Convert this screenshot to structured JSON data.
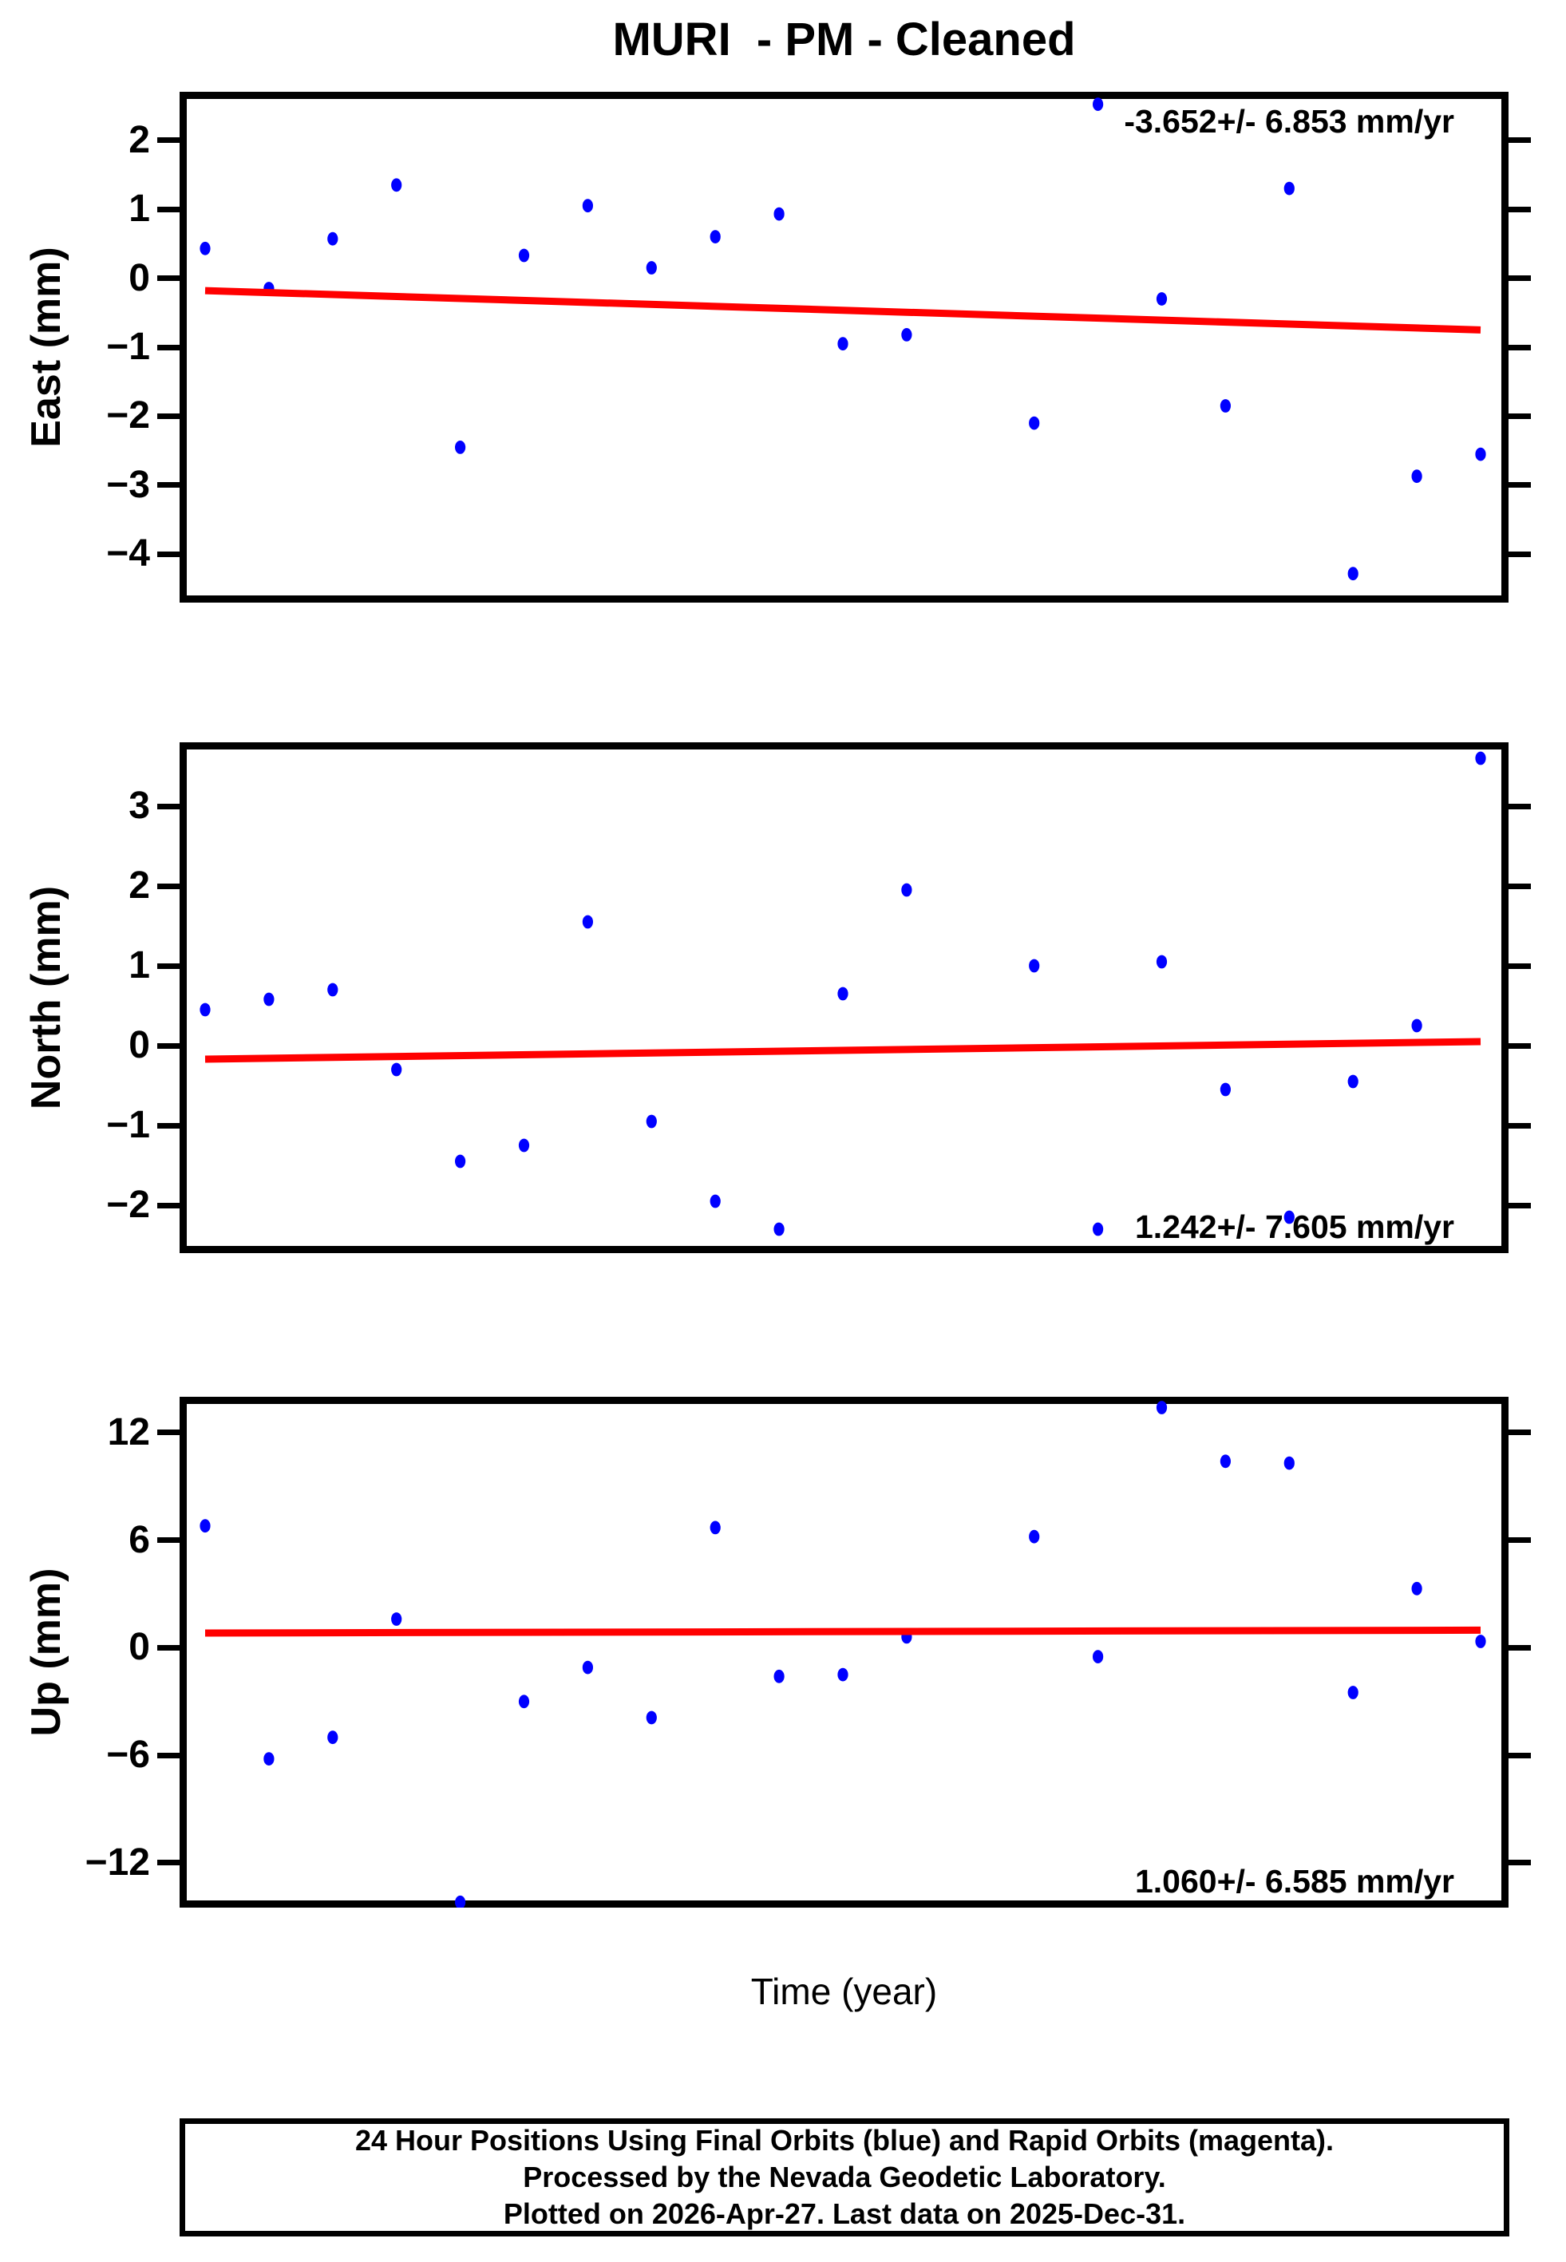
{
  "header": {
    "title": "MURI  - PM - Cleaned"
  },
  "colors": {
    "point": "#0000ff",
    "trend": "#ff0000",
    "frame": "#000000",
    "text": "#000000",
    "background": "#ffffff"
  },
  "x_axis": {
    "label": "Time (year)",
    "slots": 21,
    "missing_slot": 12,
    "tick_labels_visible": false
  },
  "footer": {
    "lines": [
      "24 Hour Positions Using Final Orbits (blue) and Rapid Orbits (magenta).",
      "Processed by the Nevada Geodetic Laboratory.",
      "Plotted on 2026-Apr-27. Last data on 2025-Dec-31."
    ]
  },
  "chart_data": [
    {
      "type": "scatter",
      "id": "east",
      "ylabel": "East (mm)",
      "annotation": "-3.652+/- 6.853 mm/yr",
      "annotation_corner": "top-right",
      "ylim": [
        -4.7,
        2.7
      ],
      "yticks": [
        2,
        1,
        0,
        -1,
        -2,
        -3,
        -4
      ],
      "trend": {
        "start_value": -0.18,
        "end_value": -0.75
      },
      "points_slot_value": [
        [
          0,
          0.43
        ],
        [
          1,
          -0.15
        ],
        [
          2,
          0.57
        ],
        [
          3,
          1.35
        ],
        [
          4,
          -2.45
        ],
        [
          5,
          0.33
        ],
        [
          6,
          1.05
        ],
        [
          7,
          0.15
        ],
        [
          8,
          0.6
        ],
        [
          9,
          0.93
        ],
        [
          10,
          -0.95
        ],
        [
          11,
          -0.82
        ],
        [
          13,
          -2.1
        ],
        [
          14,
          2.52
        ],
        [
          15,
          -0.3
        ],
        [
          16,
          -1.85
        ],
        [
          17,
          1.3
        ],
        [
          18,
          -4.28
        ],
        [
          19,
          -2.87
        ],
        [
          20,
          -2.55
        ]
      ]
    },
    {
      "type": "scatter",
      "id": "north",
      "ylabel": "North (mm)",
      "annotation": "1.242+/- 7.605 mm/yr",
      "annotation_corner": "bottom-right",
      "ylim": [
        -2.6,
        3.8
      ],
      "yticks": [
        3,
        2,
        1,
        0,
        -1,
        -2
      ],
      "trend": {
        "start_value": -0.17,
        "end_value": 0.05
      },
      "points_slot_value": [
        [
          0,
          0.45
        ],
        [
          1,
          0.58
        ],
        [
          2,
          0.7
        ],
        [
          3,
          -0.3
        ],
        [
          4,
          -1.45
        ],
        [
          5,
          -1.25
        ],
        [
          6,
          1.55
        ],
        [
          7,
          -0.95
        ],
        [
          8,
          -1.95
        ],
        [
          9,
          -2.3
        ],
        [
          10,
          0.65
        ],
        [
          11,
          1.95
        ],
        [
          13,
          1.0
        ],
        [
          14,
          -2.3
        ],
        [
          15,
          1.05
        ],
        [
          16,
          -0.55
        ],
        [
          17,
          -2.15
        ],
        [
          18,
          -0.45
        ],
        [
          19,
          0.25
        ],
        [
          20,
          3.6
        ]
      ]
    },
    {
      "type": "scatter",
      "id": "up",
      "ylabel": "Up (mm)",
      "annotation": "1.060+/- 6.585 mm/yr",
      "annotation_corner": "bottom-right",
      "ylim": [
        -14.5,
        14.0
      ],
      "yticks": [
        12,
        6,
        0,
        -6,
        -12
      ],
      "trend": {
        "start_value": 0.82,
        "end_value": 0.98
      },
      "points_slot_value": [
        [
          0,
          6.8
        ],
        [
          1,
          -6.2
        ],
        [
          2,
          -5.0
        ],
        [
          3,
          1.6
        ],
        [
          4,
          -14.2
        ],
        [
          5,
          -3.0
        ],
        [
          6,
          -1.1
        ],
        [
          7,
          -3.9
        ],
        [
          8,
          6.7
        ],
        [
          9,
          -1.6
        ],
        [
          10,
          -1.5
        ],
        [
          11,
          0.6
        ],
        [
          13,
          6.2
        ],
        [
          14,
          -0.5
        ],
        [
          15,
          13.4
        ],
        [
          16,
          10.4
        ],
        [
          17,
          10.3
        ],
        [
          18,
          -2.5
        ],
        [
          19,
          3.3
        ],
        [
          20,
          0.35
        ]
      ]
    }
  ]
}
